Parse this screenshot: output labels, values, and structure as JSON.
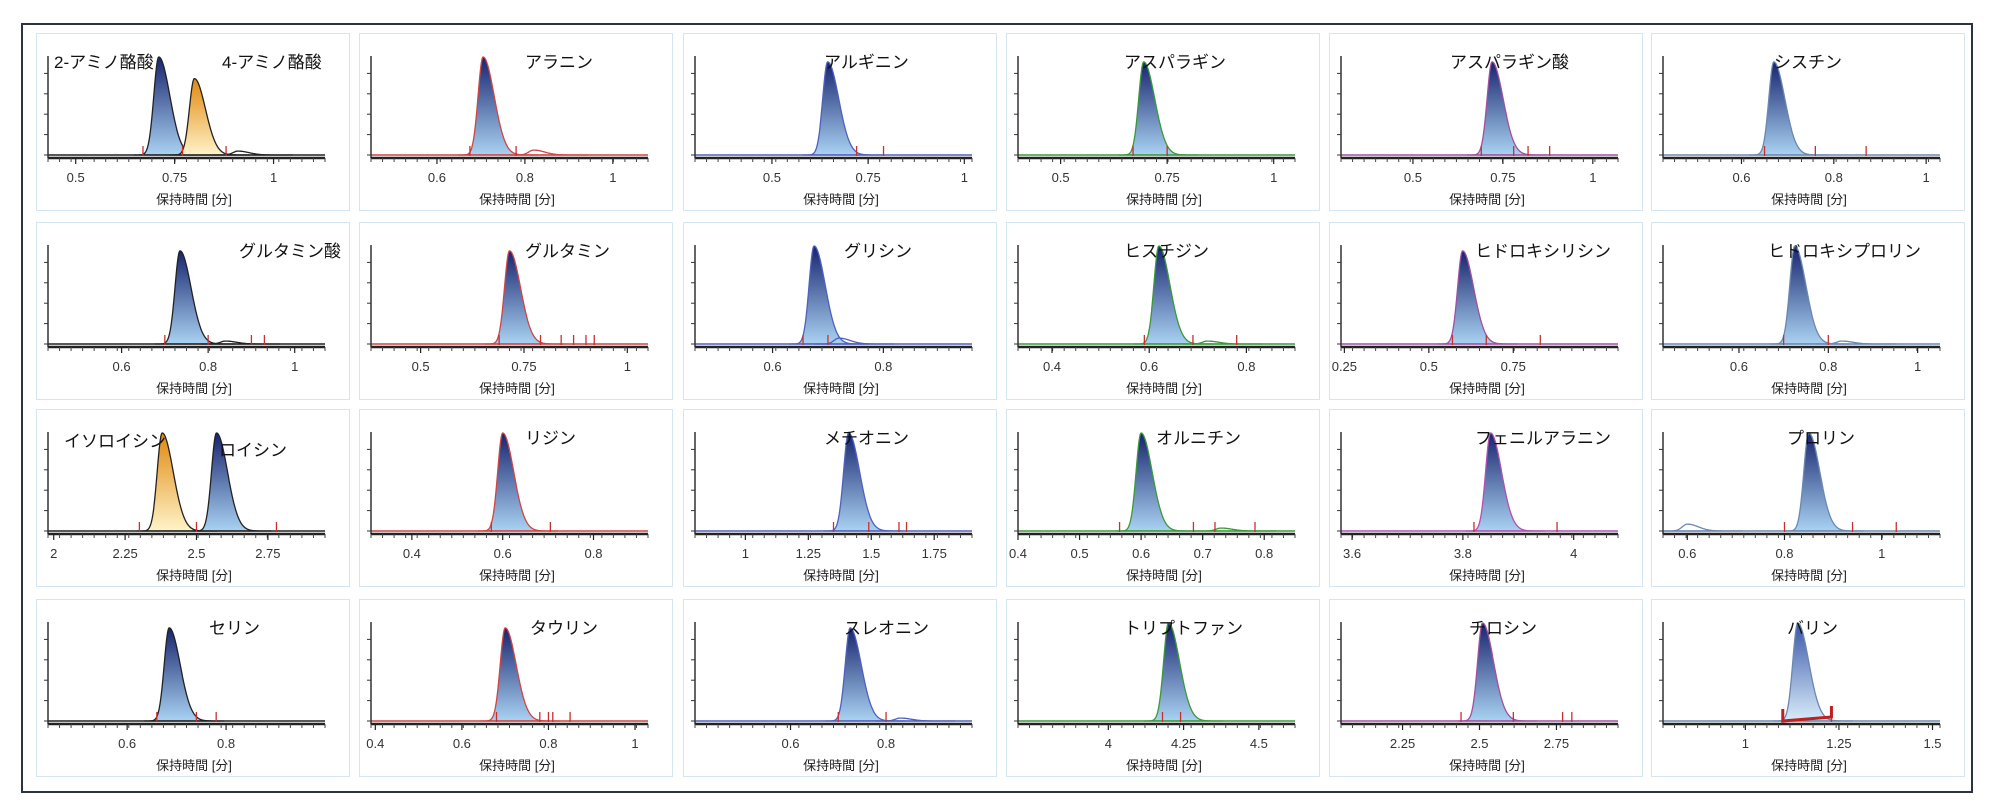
{
  "chart_data": [
    {
      "type": "line",
      "titles": [
        "2-アミノ酪酸",
        "4-アミノ酪酸"
      ],
      "xlabel": "保持時間 [分]",
      "xlim": [
        0.43,
        1.13
      ],
      "xticks": [
        "0.5",
        "0.75",
        "1"
      ],
      "line_color": "#222222",
      "peaks": [
        {
          "rt": 0.71,
          "height": 1.0,
          "fill": "blue"
        },
        {
          "rt": 0.8,
          "height": 0.78,
          "fill": "orange"
        },
        {
          "rt": 0.91,
          "height": 0.04,
          "fill": "none"
        }
      ],
      "markers": [
        0.67,
        0.77,
        0.88
      ]
    },
    {
      "type": "line",
      "titles": [
        "アラニン"
      ],
      "xlabel": "保持時間 [分]",
      "xlim": [
        0.45,
        1.08
      ],
      "xticks": [
        "0.6",
        "0.8",
        "1"
      ],
      "line_color": "#d04545",
      "peaks": [
        {
          "rt": 0.705,
          "height": 1.0,
          "fill": "blue"
        },
        {
          "rt": 0.82,
          "height": 0.05,
          "fill": "none"
        }
      ],
      "markers": [
        0.675,
        0.78
      ]
    },
    {
      "type": "line",
      "titles": [
        "アルギニン"
      ],
      "xlabel": "保持時間 [分]",
      "xlim": [
        0.3,
        1.02
      ],
      "xticks": [
        "0.5",
        "0.75",
        "1"
      ],
      "line_color": "#5060c0",
      "peaks": [
        {
          "rt": 0.645,
          "height": 0.95,
          "fill": "blue"
        }
      ],
      "markers": [
        0.72,
        0.79
      ]
    },
    {
      "type": "line",
      "titles": [
        "アスパラギン"
      ],
      "xlabel": "保持時間 [分]",
      "xlim": [
        0.4,
        1.05
      ],
      "xticks": [
        "0.5",
        "0.75",
        "1"
      ],
      "line_color": "#3a9a3a",
      "peaks": [
        {
          "rt": 0.695,
          "height": 0.95,
          "fill": "blue"
        }
      ],
      "markers": [
        0.67,
        0.75
      ]
    },
    {
      "type": "line",
      "titles": [
        "アスパラギン酸"
      ],
      "xlabel": "保持時間 [分]",
      "xlim": [
        0.3,
        1.07
      ],
      "xticks": [
        "0.5",
        "0.75",
        "1"
      ],
      "line_color": "#a050a0",
      "peaks": [
        {
          "rt": 0.72,
          "height": 0.95,
          "fill": "blue"
        }
      ],
      "markers": [
        0.69,
        0.78,
        0.82,
        0.88
      ]
    },
    {
      "type": "line",
      "titles": [
        "シスチン"
      ],
      "xlabel": "保持時間 [分]",
      "xlim": [
        0.43,
        1.03
      ],
      "xticks": [
        "0.6",
        "0.8",
        "1"
      ],
      "line_color": "#6a88b0",
      "peaks": [
        {
          "rt": 0.67,
          "height": 0.95,
          "fill": "blue"
        }
      ],
      "markers": [
        0.65,
        0.76,
        0.87
      ]
    },
    {
      "type": "line",
      "titles": [
        "グルタミン酸"
      ],
      "xlabel": "保持時間 [分]",
      "xlim": [
        0.43,
        1.07
      ],
      "xticks": [
        "0.6",
        "0.8",
        "1"
      ],
      "line_color": "#222222",
      "peaks": [
        {
          "rt": 0.735,
          "height": 0.95,
          "fill": "blue"
        },
        {
          "rt": 0.84,
          "height": 0.03,
          "fill": "none"
        }
      ],
      "markers": [
        0.7,
        0.8,
        0.9,
        0.93
      ]
    },
    {
      "type": "line",
      "titles": [
        "グルタミン"
      ],
      "xlabel": "保持時間 [分]",
      "xlim": [
        0.38,
        1.05
      ],
      "xticks": [
        "0.5",
        "0.75",
        "1"
      ],
      "line_color": "#d04545",
      "peaks": [
        {
          "rt": 0.715,
          "height": 0.95,
          "fill": "blue"
        }
      ],
      "markers": [
        0.69,
        0.79,
        0.84,
        0.87,
        0.9,
        0.92
      ]
    },
    {
      "type": "line",
      "titles": [
        "グリシン"
      ],
      "xlabel": "保持時間 [分]",
      "xlim": [
        0.46,
        0.96
      ],
      "xticks": [
        "0.6",
        "0.8"
      ],
      "line_color": "#5060c0",
      "peaks": [
        {
          "rt": 0.675,
          "height": 1.0,
          "fill": "blue"
        },
        {
          "rt": 0.72,
          "height": 0.06,
          "fill": "none"
        }
      ],
      "markers": [
        0.655,
        0.7
      ]
    },
    {
      "type": "line",
      "titles": [
        "ヒスチジン"
      ],
      "xlabel": "保持時間 [分]",
      "xlim": [
        0.33,
        0.9
      ],
      "xticks": [
        "0.4",
        "0.6",
        "0.8"
      ],
      "line_color": "#3a9a3a",
      "peaks": [
        {
          "rt": 0.62,
          "height": 1.0,
          "fill": "blue"
        },
        {
          "rt": 0.72,
          "height": 0.03,
          "fill": "none"
        }
      ],
      "markers": [
        0.59,
        0.69,
        0.78
      ]
    },
    {
      "type": "line",
      "titles": [
        "ヒドロキシリシン"
      ],
      "xlabel": "保持時間 [分]",
      "xlim": [
        0.24,
        1.06
      ],
      "xticks": [
        "0.25",
        "0.5",
        "0.75"
      ],
      "line_color": "#a050a0",
      "peaks": [
        {
          "rt": 0.6,
          "height": 0.95,
          "fill": "blue"
        }
      ],
      "markers": [
        0.57,
        0.67,
        0.83
      ]
    },
    {
      "type": "line",
      "titles": [
        "ヒドロキシプロリン"
      ],
      "xlabel": "保持時間 [分]",
      "xlim": [
        0.43,
        1.05
      ],
      "xticks": [
        "0.6",
        "0.8",
        "1"
      ],
      "line_color": "#6a88b0",
      "peaks": [
        {
          "rt": 0.725,
          "height": 1.0,
          "fill": "blue"
        },
        {
          "rt": 0.83,
          "height": 0.03,
          "fill": "none"
        }
      ],
      "markers": [
        0.7,
        0.8
      ]
    },
    {
      "type": "line",
      "titles": [
        "イソロイシン",
        "ロイシン"
      ],
      "xlabel": "保持時間 [分]",
      "xlim": [
        1.98,
        2.95
      ],
      "xticks": [
        "2",
        "2.25",
        "2.5",
        "2.75"
      ],
      "line_color": "#222222",
      "peaks": [
        {
          "rt": 2.38,
          "height": 1.0,
          "fill": "orange"
        },
        {
          "rt": 2.57,
          "height": 1.0,
          "fill": "blue"
        }
      ],
      "markers": [
        2.3,
        2.5,
        2.78
      ]
    },
    {
      "type": "line",
      "titles": [
        "リジン"
      ],
      "xlabel": "保持時間 [分]",
      "xlim": [
        0.31,
        0.92
      ],
      "xticks": [
        "0.4",
        "0.6",
        "0.8"
      ],
      "line_color": "#d04545",
      "peaks": [
        {
          "rt": 0.6,
          "height": 1.0,
          "fill": "blue"
        }
      ],
      "markers": [
        0.575,
        0.705
      ]
    },
    {
      "type": "line",
      "titles": [
        "メチオニン"
      ],
      "xlabel": "保持時間 [分]",
      "xlim": [
        0.8,
        1.9
      ],
      "xticks": [
        "1",
        "1.25",
        "1.5",
        "1.75"
      ],
      "line_color": "#5060c0",
      "peaks": [
        {
          "rt": 1.41,
          "height": 1.0,
          "fill": "blue"
        }
      ],
      "markers": [
        1.35,
        1.49,
        1.61,
        1.64
      ]
    },
    {
      "type": "line",
      "titles": [
        "オルニチン"
      ],
      "xlabel": "保持時間 [分]",
      "xlim": [
        0.4,
        0.85
      ],
      "xticks": [
        "0.4",
        "0.5",
        "0.6",
        "0.7",
        "0.8"
      ],
      "line_color": "#3a9a3a",
      "peaks": [
        {
          "rt": 0.6,
          "height": 1.0,
          "fill": "blue"
        },
        {
          "rt": 0.73,
          "height": 0.03,
          "fill": "none"
        }
      ],
      "markers": [
        0.565,
        0.685,
        0.72,
        0.785
      ]
    },
    {
      "type": "line",
      "titles": [
        "フェニルアラニン"
      ],
      "xlabel": "保持時間 [分]",
      "xlim": [
        3.58,
        4.08
      ],
      "xticks": [
        "3.6",
        "3.8",
        "4"
      ],
      "line_color": "#b050b0",
      "peaks": [
        {
          "rt": 3.85,
          "height": 1.0,
          "fill": "blue"
        }
      ],
      "markers": [
        3.82,
        3.97
      ]
    },
    {
      "type": "line",
      "titles": [
        "プロリン"
      ],
      "xlabel": "保持時間 [分]",
      "xlim": [
        0.55,
        1.12
      ],
      "xticks": [
        "0.6",
        "0.8",
        "1"
      ],
      "line_color": "#6a88b0",
      "peaks": [
        {
          "rt": 0.85,
          "height": 1.0,
          "fill": "blue"
        },
        {
          "rt": 0.6,
          "height": 0.07,
          "fill": "none"
        }
      ],
      "markers": [
        0.8,
        0.94,
        1.03
      ]
    },
    {
      "type": "line",
      "titles": [
        "セリン"
      ],
      "xlabel": "保持時間 [分]",
      "xlim": [
        0.44,
        1.0
      ],
      "xticks": [
        "0.6",
        "0.8"
      ],
      "line_color": "#222222",
      "peaks": [
        {
          "rt": 0.685,
          "height": 0.95,
          "fill": "blue"
        }
      ],
      "markers": [
        0.66,
        0.74,
        0.78
      ]
    },
    {
      "type": "line",
      "titles": [
        "タウリン"
      ],
      "xlabel": "保持時間 [分]",
      "xlim": [
        0.39,
        1.03
      ],
      "xticks": [
        "0.4",
        "0.6",
        "0.8",
        "1"
      ],
      "line_color": "#d04545",
      "peaks": [
        {
          "rt": 0.7,
          "height": 0.95,
          "fill": "blue"
        }
      ],
      "markers": [
        0.68,
        0.78,
        0.8,
        0.81,
        0.85
      ]
    },
    {
      "type": "line",
      "titles": [
        "スレオニン"
      ],
      "xlabel": "保持時間 [分]",
      "xlim": [
        0.4,
        0.98
      ],
      "xticks": [
        "0.6",
        "0.8"
      ],
      "line_color": "#5060c0",
      "peaks": [
        {
          "rt": 0.725,
          "height": 0.95,
          "fill": "blue"
        },
        {
          "rt": 0.83,
          "height": 0.03,
          "fill": "none"
        }
      ],
      "markers": [
        0.7,
        0.8
      ]
    },
    {
      "type": "line",
      "titles": [
        "トリプトファン"
      ],
      "xlabel": "保持時間 [分]",
      "xlim": [
        3.7,
        4.62
      ],
      "xticks": [
        "4",
        "4.25",
        "4.5"
      ],
      "line_color": "#3a9a3a",
      "peaks": [
        {
          "rt": 4.2,
          "height": 1.0,
          "fill": "blue"
        }
      ],
      "markers": [
        4.18,
        4.24
      ]
    },
    {
      "type": "line",
      "titles": [
        "チロシン"
      ],
      "xlabel": "保持時間 [分]",
      "xlim": [
        2.05,
        2.95
      ],
      "xticks": [
        "2.25",
        "2.5",
        "2.75"
      ],
      "line_color": "#a050a0",
      "peaks": [
        {
          "rt": 2.51,
          "height": 1.0,
          "fill": "blue"
        }
      ],
      "markers": [
        2.44,
        2.61,
        2.77,
        2.8
      ]
    },
    {
      "type": "line",
      "titles": [
        "バリン"
      ],
      "xlabel": "保持時間 [分]",
      "xlim": [
        0.78,
        1.52
      ],
      "xticks": [
        "1",
        "1.25",
        "1.5"
      ],
      "line_color": "#6a88b0",
      "peaks": [
        {
          "rt": 1.14,
          "height": 1.0,
          "fill": "light"
        }
      ],
      "markers": [
        1.1,
        1.23
      ],
      "bracket": true
    }
  ]
}
